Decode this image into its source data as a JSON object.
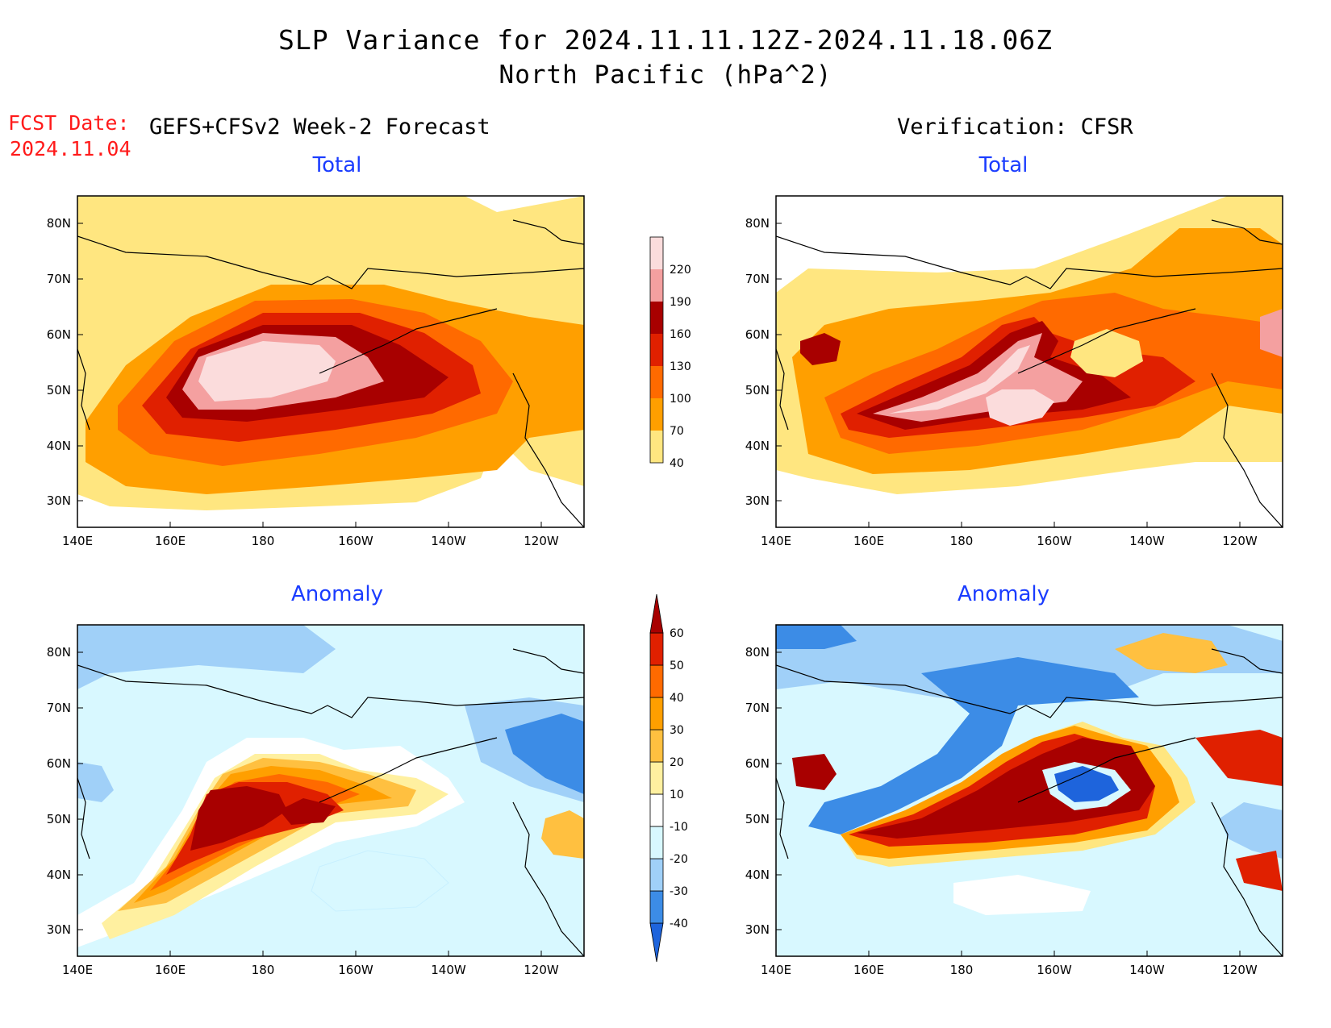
{
  "header": {
    "title_line1": "SLP Variance for 2024.11.11.12Z-2024.11.18.06Z",
    "title_line2": "North Pacific (hPa^2)",
    "fcst_label": "FCST Date:",
    "fcst_date": "2024.11.04",
    "forecast_label": "GEFS+CFSv2 Week-2 Forecast",
    "verification_label": "Verification: CFSR"
  },
  "panels": [
    {
      "id": "fc-total",
      "title": "Total",
      "scale": "total"
    },
    {
      "id": "ver-total",
      "title": "Total",
      "scale": "total"
    },
    {
      "id": "fc-anom",
      "title": "Anomaly",
      "scale": "anomaly"
    },
    {
      "id": "ver-anom",
      "title": "Anomaly",
      "scale": "anomaly"
    }
  ],
  "axes": {
    "lon_labels": [
      "140E",
      "160E",
      "180",
      "160W",
      "140W",
      "120W"
    ],
    "lat_labels": [
      "30N",
      "40N",
      "50N",
      "60N",
      "70N",
      "80N"
    ]
  },
  "colorbars": {
    "total": {
      "levels": [
        "40",
        "70",
        "100",
        "130",
        "160",
        "190",
        "220"
      ],
      "colors": [
        "#ffe680",
        "#ff9f00",
        "#ff6a00",
        "#e02000",
        "#a80000",
        "#f4a0a0",
        "#fbdcdc"
      ]
    },
    "anomaly": {
      "levels": [
        "-40",
        "-30",
        "-20",
        "-10",
        "10",
        "20",
        "30",
        "40",
        "50",
        "60"
      ],
      "colors": [
        "#1e64dc",
        "#3c8ce6",
        "#a0d0f8",
        "#d8f8ff",
        "#ffffff",
        "#fff0a0",
        "#ffc040",
        "#ff9f00",
        "#ff6a00",
        "#e02000",
        "#a80000"
      ]
    }
  }
}
